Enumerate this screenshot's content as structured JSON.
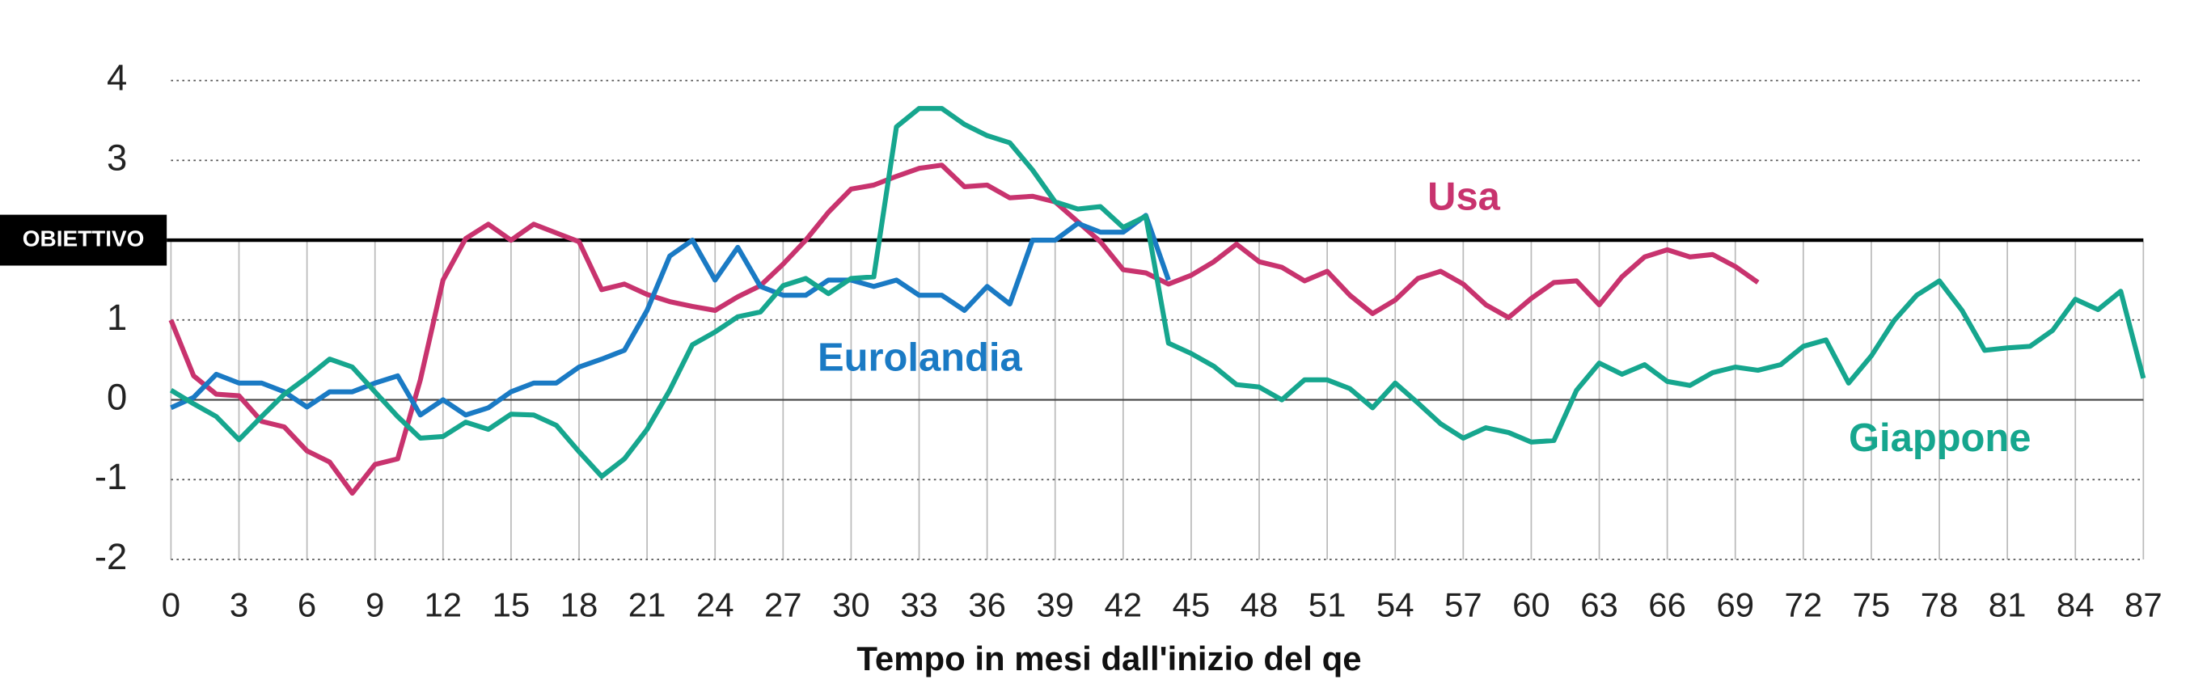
{
  "chart_data": {
    "type": "line",
    "x_label": "Tempo in mesi dall'inizio del qe",
    "x": [
      0,
      1,
      2,
      3,
      4,
      5,
      6,
      7,
      8,
      9,
      10,
      11,
      12,
      13,
      14,
      15,
      16,
      17,
      18,
      19,
      20,
      21,
      22,
      23,
      24,
      25,
      26,
      27,
      28,
      29,
      30,
      31,
      32,
      33,
      34,
      35,
      36,
      37,
      38,
      39,
      40,
      41,
      42,
      43,
      44,
      45,
      46,
      47,
      48,
      49,
      50,
      51,
      52,
      53,
      54,
      55,
      56,
      57,
      58,
      59,
      60,
      61,
      62,
      63,
      64,
      65,
      66,
      67,
      68,
      69,
      70,
      71,
      72,
      73,
      74,
      75,
      76,
      77,
      78,
      79,
      80,
      81,
      82,
      83,
      84,
      85,
      86,
      87
    ],
    "xlim": [
      0,
      87
    ],
    "xticks": [
      0,
      3,
      6,
      9,
      12,
      15,
      18,
      21,
      24,
      27,
      30,
      33,
      36,
      39,
      42,
      45,
      48,
      51,
      54,
      57,
      60,
      63,
      66,
      69,
      72,
      75,
      78,
      81,
      84,
      87
    ],
    "ylim": [
      -2,
      4
    ],
    "yticks": [
      -2,
      -1,
      0,
      1,
      {
        "value": 2,
        "label": "OBIETTIVO"
      },
      3,
      4
    ],
    "grid": true,
    "zero_line": true,
    "series": [
      {
        "name": "Usa",
        "color": "#c8336e",
        "values": [
          1.0,
          0.3,
          0.07,
          0.05,
          -0.27,
          -0.34,
          -0.64,
          -0.78,
          -1.17,
          -0.81,
          -0.74,
          0.25,
          1.5,
          2.02,
          2.2,
          2.0,
          2.2,
          2.09,
          1.98,
          1.38,
          1.45,
          1.32,
          1.23,
          1.17,
          1.12,
          1.29,
          1.43,
          1.7,
          2.0,
          2.35,
          2.64,
          2.69,
          2.8,
          2.9,
          2.94,
          2.67,
          2.69,
          2.53,
          2.55,
          2.48,
          2.23,
          1.98,
          1.63,
          1.59,
          1.45,
          1.56,
          1.73,
          1.95,
          1.73,
          1.66,
          1.49,
          1.61,
          1.31,
          1.08,
          1.25,
          1.52,
          1.61,
          1.45,
          1.19,
          1.03,
          1.27,
          1.47,
          1.49,
          1.19,
          1.54,
          1.79,
          1.88,
          1.79,
          1.82,
          1.67,
          1.47,
          null,
          null,
          null,
          null,
          null,
          null,
          null,
          null,
          null,
          null,
          null,
          null,
          null,
          null,
          null,
          null,
          null
        ]
      },
      {
        "name": "Eurolandia",
        "color": "#1a7ac4",
        "values": [
          -0.1,
          0.03,
          0.32,
          0.21,
          0.21,
          0.1,
          -0.09,
          0.1,
          0.1,
          0.21,
          0.3,
          -0.19,
          0,
          -0.19,
          -0.1,
          0.1,
          0.21,
          0.21,
          0.41,
          0.51,
          0.62,
          1.12,
          1.8,
          2.0,
          1.5,
          1.91,
          1.42,
          1.31,
          1.31,
          1.5,
          1.5,
          1.42,
          1.5,
          1.31,
          1.31,
          1.12,
          1.42,
          1.2,
          2.0,
          2.0,
          2.21,
          2.1,
          2.1,
          2.31,
          1.5,
          null,
          null,
          null,
          null,
          null,
          null,
          null,
          null,
          null,
          null,
          null,
          null,
          null,
          null,
          null,
          null,
          null,
          null,
          null,
          null,
          null,
          null,
          null,
          null,
          null,
          null,
          null,
          null,
          null,
          null,
          null,
          null,
          null,
          null,
          null,
          null,
          null,
          null,
          null,
          null,
          null,
          null,
          null
        ]
      },
      {
        "name": "Giappone",
        "color": "#16a68e",
        "values": [
          0.12,
          -0.05,
          -0.21,
          -0.5,
          -0.21,
          0.07,
          0.28,
          0.51,
          0.41,
          0.1,
          -0.21,
          -0.48,
          -0.46,
          -0.28,
          -0.37,
          -0.18,
          -0.19,
          -0.32,
          -0.65,
          -0.96,
          -0.74,
          -0.37,
          0.12,
          0.69,
          0.85,
          1.04,
          1.1,
          1.43,
          1.52,
          1.33,
          1.52,
          1.54,
          3.42,
          3.65,
          3.65,
          3.45,
          3.31,
          3.22,
          2.88,
          2.48,
          2.39,
          2.42,
          2.16,
          2.3,
          0.71,
          0.58,
          0.42,
          0.19,
          0.16,
          0,
          0.25,
          0.25,
          0.14,
          -0.1,
          0.21,
          -0.04,
          -0.3,
          -0.48,
          -0.35,
          -0.41,
          -0.53,
          -0.51,
          0.12,
          0.46,
          0.32,
          0.44,
          0.23,
          0.18,
          0.34,
          0.41,
          0.37,
          0.44,
          0.67,
          0.75,
          0.21,
          0.55,
          0.99,
          1.31,
          1.49,
          1.12,
          0.62,
          0.65,
          0.67,
          0.87,
          1.26,
          1.13,
          1.36,
          0.27
        ]
      }
    ]
  }
}
